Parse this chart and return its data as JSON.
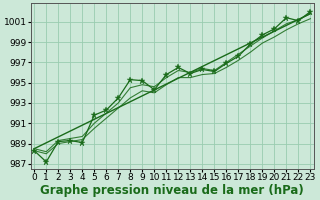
{
  "xlabel": "Graphe pression niveau de la mer (hPa)",
  "x_values": [
    0,
    1,
    2,
    3,
    4,
    5,
    6,
    7,
    8,
    9,
    10,
    11,
    12,
    13,
    14,
    15,
    16,
    17,
    18,
    19,
    20,
    21,
    22,
    23
  ],
  "pressure": [
    988.3,
    987.2,
    989.2,
    989.3,
    989.1,
    991.8,
    992.3,
    993.5,
    995.3,
    995.2,
    994.3,
    995.8,
    996.5,
    995.9,
    996.3,
    996.1,
    996.9,
    997.6,
    998.8,
    999.7,
    1000.3,
    1001.4,
    1001.1,
    1002.0
  ],
  "line1": [
    988.3,
    988.0,
    989.0,
    989.2,
    989.4,
    990.5,
    991.5,
    992.5,
    993.5,
    994.2,
    994.0,
    994.8,
    995.5,
    995.5,
    995.8,
    995.9,
    996.5,
    997.2,
    998.0,
    998.9,
    999.5,
    1000.2,
    1000.8,
    1001.3
  ],
  "line2": [
    988.5,
    988.2,
    989.3,
    989.5,
    989.7,
    991.0,
    992.0,
    993.0,
    994.5,
    994.8,
    994.6,
    995.5,
    996.2,
    996.0,
    996.4,
    996.2,
    997.0,
    997.8,
    998.6,
    999.4,
    1000.1,
    1000.8,
    1001.2,
    1001.8
  ],
  "trend_x": [
    0,
    23
  ],
  "trend_y": [
    988.5,
    1001.8
  ],
  "ylim": [
    986.5,
    1002.8
  ],
  "yticks": [
    987,
    989,
    991,
    993,
    995,
    997,
    999,
    1001
  ],
  "xticks": [
    0,
    1,
    2,
    3,
    4,
    5,
    6,
    7,
    8,
    9,
    10,
    11,
    12,
    13,
    14,
    15,
    16,
    17,
    18,
    19,
    20,
    21,
    22,
    23
  ],
  "bg_color": "#cce8d8",
  "grid_color": "#99ccb0",
  "line_color": "#1a6b1a",
  "tick_label_fontsize": 6.5,
  "xlabel_fontsize": 8.5
}
